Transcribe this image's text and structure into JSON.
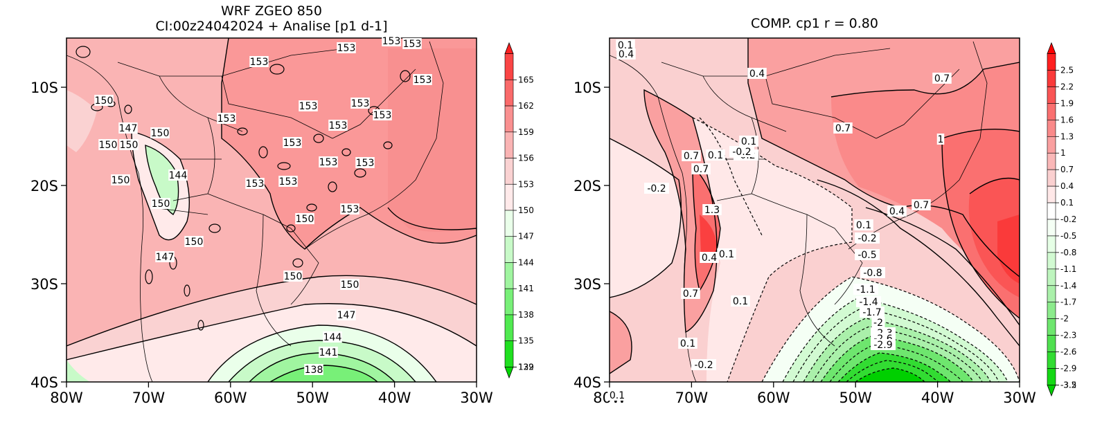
{
  "left_panel": {
    "title_line1": "WRF ZGEO 850",
    "title_line2": "CI:00z24042024 + Analise  [p1 d-1]",
    "x_ticks": [
      "80W",
      "70W",
      "60W",
      "50W",
      "40W",
      "30W"
    ],
    "y_ticks": [
      "10S",
      "20S",
      "30S",
      "40S"
    ],
    "colorbar_labels": [
      "165",
      "162",
      "159",
      "156",
      "153",
      "150",
      "147",
      "144",
      "141",
      "138",
      "135",
      "132",
      "129"
    ],
    "colorbar_colors": [
      "#ff2020",
      "#fa4545",
      "#fa6a6a",
      "#fa9090",
      "#fab4b4",
      "#fad2d2",
      "#ffeaea",
      "#eaffea",
      "#c8fac8",
      "#a0f5a0",
      "#78f078",
      "#50ea50",
      "#20e020",
      "#00d800"
    ],
    "contour_labels": [
      "153",
      "153",
      "153",
      "153",
      "153",
      "153",
      "153",
      "153",
      "153",
      "153",
      "153",
      "153",
      "153",
      "153",
      "153",
      "153",
      "150",
      "150",
      "150",
      "150",
      "150",
      "150",
      "150",
      "150",
      "150",
      "150",
      "147",
      "147",
      "147",
      "144",
      "144",
      "141",
      "138"
    ]
  },
  "right_panel": {
    "title": "COMP. cp1   r =   0.80",
    "x_ticks": [
      "80W",
      "70W",
      "60W",
      "50W",
      "40W",
      "30W"
    ],
    "y_ticks": [
      "10S",
      "20S",
      "30S",
      "40S"
    ],
    "colorbar_labels": [
      "2.5",
      "2.2",
      "1.9",
      "1.6",
      "1.3",
      "1",
      "0.7",
      "0.4",
      "0.1",
      "-0.2",
      "-0.5",
      "-0.8",
      "-1.1",
      "-1.4",
      "-1.7",
      "-2",
      "-2.3",
      "-2.6",
      "-2.9",
      "-3.2",
      "-3.5"
    ],
    "colorbar_colors": [
      "#ff0000",
      "#ff2020",
      "#fa3a3a",
      "#fa5555",
      "#fa7070",
      "#fa8a8a",
      "#faa0a0",
      "#fab8b8",
      "#fad0d0",
      "#ffe8e8",
      "#ffffff",
      "#f5fff5",
      "#e6ffe6",
      "#d2fad2",
      "#bef5be",
      "#aaf0aa",
      "#8ceb8c",
      "#6ee66e",
      "#50e050",
      "#32dc32",
      "#14d814",
      "#00d000"
    ],
    "contour_labels": [
      "0.1",
      "0.4",
      "0.4",
      "0.7",
      "0.7",
      "1",
      "0.1",
      "-0.2",
      "0.7",
      "0.7",
      "0.1",
      "-0.2",
      "-0.2",
      "1.3",
      "0.4",
      "0.1",
      "0.4",
      "0.7",
      "0.1",
      "-0.2",
      "-0.5",
      "-0.8",
      "-1.1",
      "-1.4",
      "-1.7",
      "-2",
      "-2.3",
      "-2.6",
      "-2.9",
      "0.7",
      "0.1",
      "0.1",
      "-0.2",
      "0.1"
    ]
  }
}
